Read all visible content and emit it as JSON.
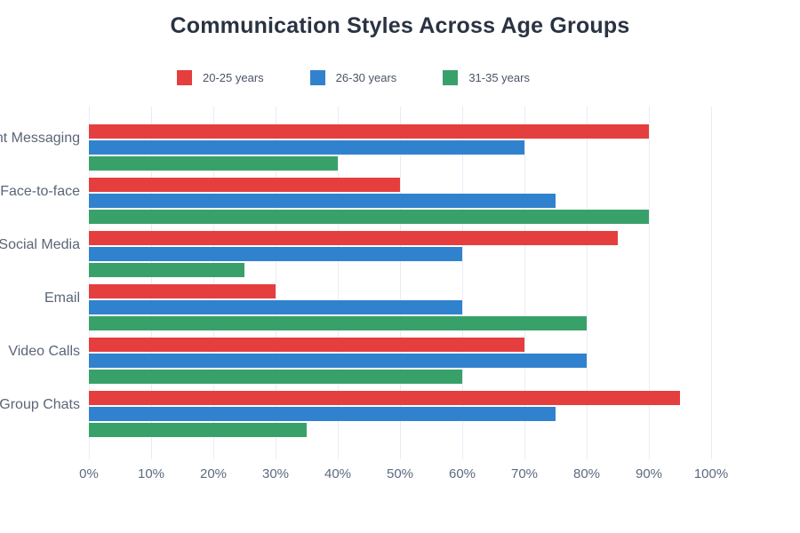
{
  "header": {
    "title": "Communication Styles Across Age Groups"
  },
  "chart_data": {
    "type": "bar",
    "orientation": "horizontal",
    "title": "Communication Styles Across Age Groups",
    "categories": [
      "Instant Messaging",
      "Face-to-face",
      "Social Media",
      "Email",
      "Video Calls",
      "Group Chats"
    ],
    "series": [
      {
        "name": "20-25 years",
        "color": "#e53e3e",
        "values": [
          90,
          50,
          85,
          30,
          70,
          95
        ]
      },
      {
        "name": "26-30 years",
        "color": "#3182ce",
        "values": [
          70,
          75,
          60,
          60,
          80,
          75
        ]
      },
      {
        "name": "31-35 years",
        "color": "#38a169",
        "values": [
          40,
          90,
          25,
          80,
          60,
          35
        ]
      }
    ],
    "x_tick_labels": [
      "0%",
      "10%",
      "20%",
      "30%",
      "40%",
      "50%",
      "60%",
      "70%",
      "80%",
      "90%",
      "100%"
    ],
    "xlim": [
      0,
      100
    ],
    "value_unit": "%",
    "grid": "vertical",
    "legend_position": "top-center"
  },
  "colors": {
    "background": "#ffffff",
    "title_text": "#2a3342",
    "gridline": "#e9edf4",
    "category_label_text": "#5b6577",
    "tick_label_text": "#5d6a80",
    "legend_label_text": "#4a5568"
  }
}
